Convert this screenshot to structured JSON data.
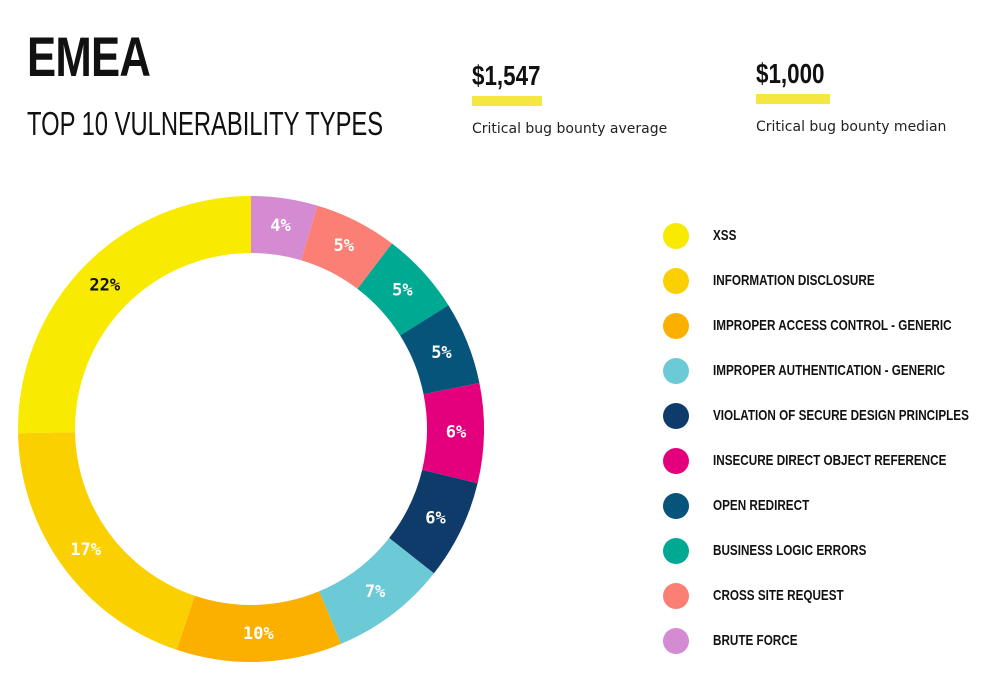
{
  "header": {
    "title": "EMEA",
    "subtitle": "TOP 10 VULNERABILITY TYPES"
  },
  "stats": [
    {
      "value": "$1,547",
      "caption": "Critical bug bounty average"
    },
    {
      "value": "$1,000",
      "caption": "Critical bug bounty median"
    }
  ],
  "colors": {
    "accent": "#f5e642",
    "label_dark": "#111111",
    "label_light": "#ffffff"
  },
  "chart_data": {
    "type": "pie",
    "variant": "donut",
    "title": "TOP 10 VULNERABILITY TYPES",
    "legend_position": "right",
    "start": "top",
    "direction": "clockwise",
    "order": [
      "Brute Force",
      "Cross Site Request",
      "Business Logic Errors",
      "Open Redirect",
      "Insecure Direct Object Reference",
      "Violation of Secure Design Principles",
      "Improper Authentication - Generic",
      "Improper Access Control - Generic",
      "Information Disclosure",
      "XSS"
    ],
    "slices": [
      {
        "name": "XSS",
        "legend": "XSS",
        "value": 22,
        "label": "22%",
        "color": "#f8ea00",
        "label_color": "#111111"
      },
      {
        "name": "Information Disclosure",
        "legend": "INFORMATION DISCLOSURE",
        "value": 17,
        "label": "17%",
        "color": "#fbd000",
        "label_color": "#ffffff"
      },
      {
        "name": "Improper Access Control - Generic",
        "legend": "IMPROPER ACCESS CONTROL - GENERIC",
        "value": 10,
        "label": "10%",
        "color": "#fbb000",
        "label_color": "#ffffff"
      },
      {
        "name": "Improper Authentication - Generic",
        "legend": "IMPROPER AUTHENTICATION - GENERIC",
        "value": 7,
        "label": "7%",
        "color": "#6cc9d6",
        "label_color": "#ffffff"
      },
      {
        "name": "Violation of Secure Design Principles",
        "legend": "VIOLATION OF SECURE DESIGN PRINCIPLES",
        "value": 6,
        "label": "6%",
        "color": "#0f3b6b",
        "label_color": "#ffffff"
      },
      {
        "name": "Insecure Direct Object Reference",
        "legend": "INSECURE DIRECT OBJECT REFERENCE",
        "value": 6,
        "label": "6%",
        "color": "#e4007c",
        "label_color": "#ffffff"
      },
      {
        "name": "Open Redirect",
        "legend": "OPEN REDIRECT",
        "value": 5,
        "label": "5%",
        "color": "#06547a",
        "label_color": "#ffffff"
      },
      {
        "name": "Business Logic Errors",
        "legend": "BUSINESS LOGIC ERRORS",
        "value": 5,
        "label": "5%",
        "color": "#00a991",
        "label_color": "#ffffff"
      },
      {
        "name": "Cross Site Request",
        "legend": "CROSS SITE REQUEST",
        "value": 5,
        "label": "5%",
        "color": "#fb7f74",
        "label_color": "#ffffff"
      },
      {
        "name": "Brute Force",
        "legend": "BRUTE FORCE",
        "value": 4,
        "label": "4%",
        "color": "#d48bd2",
        "label_color": "#ffffff"
      }
    ]
  }
}
